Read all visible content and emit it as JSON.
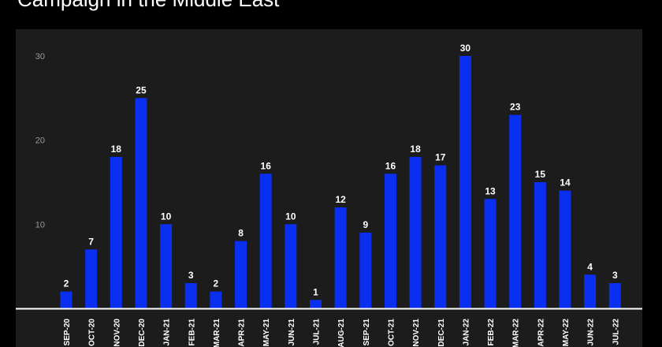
{
  "header": {
    "title": "Campaign in the Middle East"
  },
  "colors": {
    "background": "#000000",
    "panel": "#1c1c1c",
    "bar": "#0a2ff0",
    "text": "#ffffff",
    "axis": "#ffffff",
    "tick": "#9a9a9a"
  },
  "chart_data": {
    "type": "bar",
    "title": "Campaign in the Middle East",
    "xlabel": "",
    "ylabel": "",
    "ylim": [
      0,
      31
    ],
    "yticks": [
      10,
      20,
      30
    ],
    "grid": false,
    "categories": [
      "SEP-20",
      "OCT-20",
      "NOV-20",
      "DEC-20",
      "JAN-21",
      "FEB-21",
      "MAR-21",
      "APR-21",
      "MAY-21",
      "JUN-21",
      "JUL-21",
      "AUG-21",
      "SEP-21",
      "OCT-21",
      "NOV-21",
      "DEC-21",
      "JAN-22",
      "FEB-22",
      "MAR-22",
      "APR-22",
      "MAY-22",
      "JUN-22",
      "JUL-22"
    ],
    "values": [
      2,
      7,
      18,
      25,
      10,
      3,
      2,
      8,
      16,
      10,
      1,
      12,
      9,
      16,
      18,
      17,
      30,
      13,
      23,
      15,
      14,
      4,
      3
    ]
  }
}
